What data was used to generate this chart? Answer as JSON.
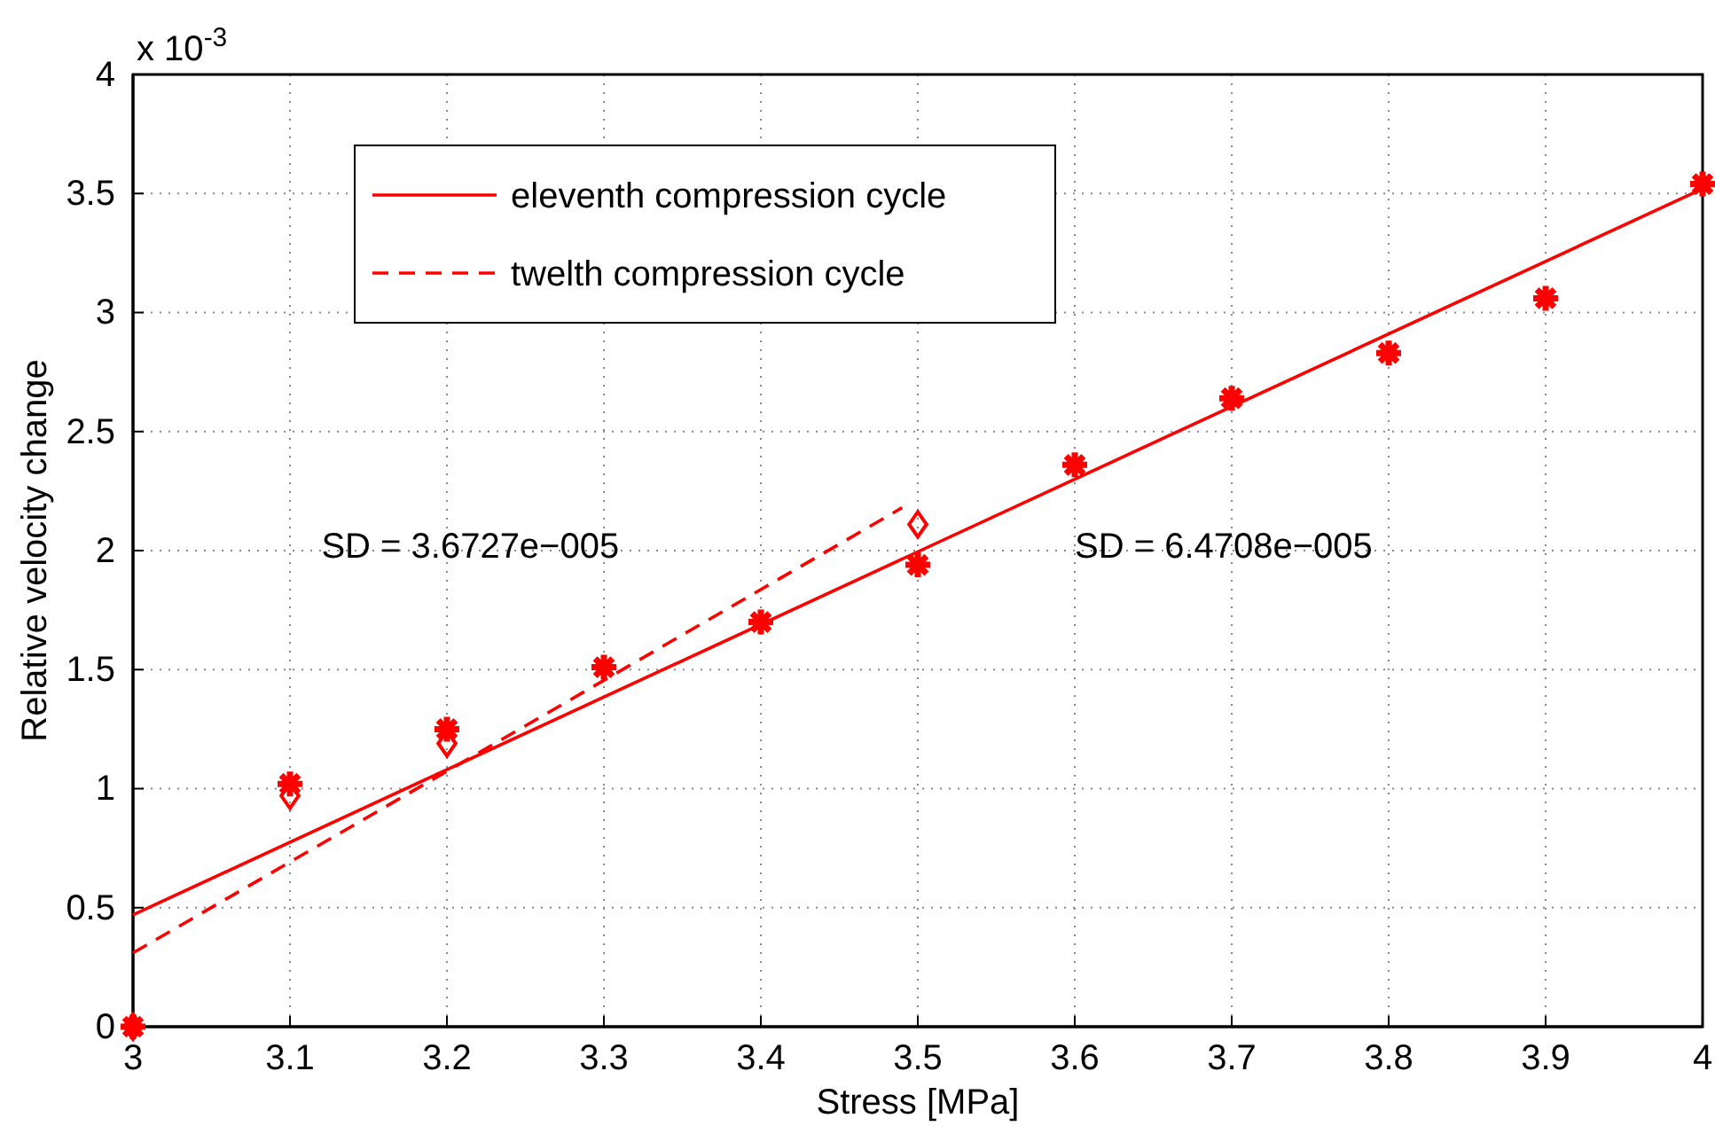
{
  "chart_data": {
    "type": "scatter",
    "xlabel": "Stress [MPa]",
    "ylabel": "Relative velocity change",
    "xlim": [
      3,
      4
    ],
    "xticks": [
      3,
      3.1,
      3.2,
      3.3,
      3.4,
      3.5,
      3.6,
      3.7,
      3.8,
      3.9,
      4
    ],
    "ylim": [
      0,
      4
    ],
    "yticks": [
      0,
      0.5,
      1,
      1.5,
      2,
      2.5,
      3,
      3.5,
      4
    ],
    "grid": true,
    "legend": "top left",
    "annotations": [
      "x 10$^{-3}$",
      "SD = 3.6727e−005",
      "SD = 6.4708e−005"
    ],
    "series": [
      {
        "name": "eleventh compression cycle",
        "type": "line",
        "line_style": "solid",
        "marker": "none",
        "color": "#ff0000",
        "x": [
          3,
          4
        ],
        "values": [
          0.47,
          3.52
        ]
      },
      {
        "name": "twelth compression cycle",
        "type": "line",
        "line_style": "dashed",
        "marker": "none",
        "color": "#ff0000",
        "x": [
          3,
          3.49
        ],
        "values": [
          0.31,
          2.18
        ]
      },
      {
        "marker": "diamond",
        "color": "#ff0000",
        "x": [
          3,
          3.1,
          3.2,
          3.5
        ],
        "values": [
          0,
          0.97,
          1.19,
          2.11
        ]
      },
      {
        "marker": "cross",
        "color": "#ff0000",
        "x": [
          3,
          3.1,
          3.2,
          3.3,
          3.4,
          3.5,
          3.6,
          3.7,
          3.8,
          3.9,
          4
        ],
        "values": [
          0,
          1.02,
          1.25,
          1.51,
          1.7,
          1.94,
          2.36,
          2.64,
          2.83,
          3.06,
          3.54
        ]
      }
    ]
  }
}
